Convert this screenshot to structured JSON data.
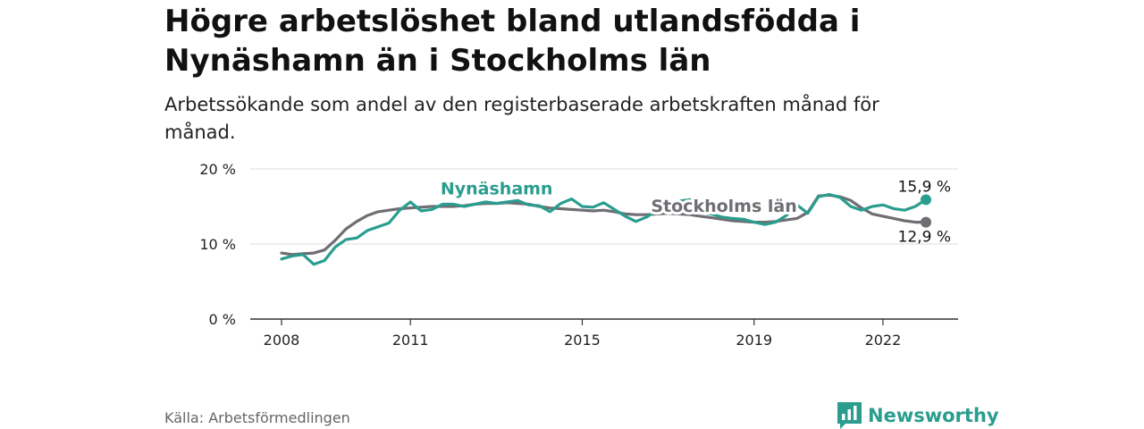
{
  "header": {
    "title": "Högre arbetslöshet bland utlandsfödda i Nynäshamn än i Stockholms län",
    "subtitle": "Arbetssökande som andel av den registerbaserade arbetskraften månad för månad."
  },
  "footer": {
    "source": "Källa: Arbetsförmedlingen",
    "brand": "Newsworthy"
  },
  "colors": {
    "nynashamn": "#2a9d8f",
    "stockholm": "#6e6e73",
    "grid": "#e3e3e3",
    "axis": "#333333",
    "brand": "#2a9d8f"
  },
  "chart_data": {
    "type": "line",
    "title": "Högre arbetslöshet bland utlandsfödda i Nynäshamn än i Stockholms län",
    "xlabel": "",
    "ylabel": "",
    "xlim": [
      2008,
      2023.5
    ],
    "ylim": [
      0,
      20
    ],
    "grid": true,
    "x_ticks": [
      {
        "value": 2008,
        "label": "2008"
      },
      {
        "value": 2011,
        "label": "2011"
      },
      {
        "value": 2015,
        "label": "2015"
      },
      {
        "value": 2019,
        "label": "2019"
      },
      {
        "value": 2022,
        "label": "2022"
      }
    ],
    "y_ticks": [
      {
        "value": 0,
        "label": "0 %"
      },
      {
        "value": 10,
        "label": "10 %"
      },
      {
        "value": 20,
        "label": "20 %"
      }
    ],
    "series": [
      {
        "name": "Nynäshamn",
        "color_key": "nynashamn",
        "end_label": "15,9 %",
        "label_at": [
          2011.7,
          16.6
        ],
        "x": [
          2008.0,
          2008.25,
          2008.5,
          2008.75,
          2009.0,
          2009.25,
          2009.5,
          2009.75,
          2010.0,
          2010.25,
          2010.5,
          2010.75,
          2011.0,
          2011.25,
          2011.5,
          2011.75,
          2012.0,
          2012.25,
          2012.5,
          2012.75,
          2013.0,
          2013.25,
          2013.5,
          2013.75,
          2014.0,
          2014.25,
          2014.5,
          2014.75,
          2015.0,
          2015.25,
          2015.5,
          2015.75,
          2016.0,
          2016.25,
          2016.5,
          2016.75,
          2017.0,
          2017.25,
          2017.5,
          2017.75,
          2018.0,
          2018.25,
          2018.5,
          2018.75,
          2019.0,
          2019.25,
          2019.5,
          2019.75,
          2020.0,
          2020.25,
          2020.5,
          2020.75,
          2021.0,
          2021.25,
          2021.5,
          2021.75,
          2022.0,
          2022.25,
          2022.5,
          2022.75,
          2023.0
        ],
        "values": [
          8.0,
          8.4,
          8.6,
          7.3,
          7.8,
          9.6,
          10.6,
          10.8,
          11.8,
          12.3,
          12.8,
          14.5,
          15.6,
          14.4,
          14.6,
          15.3,
          15.3,
          15.0,
          15.3,
          15.6,
          15.4,
          15.6,
          15.8,
          15.2,
          15.1,
          14.3,
          15.4,
          16.0,
          15.0,
          14.9,
          15.5,
          14.6,
          13.7,
          13.0,
          13.6,
          14.5,
          15.3,
          15.7,
          15.9,
          14.2,
          14.0,
          13.6,
          13.4,
          13.3,
          12.9,
          12.6,
          12.9,
          13.8,
          15.2,
          14.1,
          16.3,
          16.6,
          16.2,
          15.0,
          14.5,
          15.0,
          15.2,
          14.7,
          14.5,
          15.0,
          15.9
        ]
      },
      {
        "name": "Stockholms län",
        "color_key": "stockholm",
        "end_label": "12,9 %",
        "label_at": [
          2016.6,
          14.3
        ],
        "x": [
          2008.0,
          2008.25,
          2008.5,
          2008.75,
          2009.0,
          2009.25,
          2009.5,
          2009.75,
          2010.0,
          2010.25,
          2010.5,
          2010.75,
          2011.0,
          2011.25,
          2011.5,
          2011.75,
          2012.0,
          2012.25,
          2012.5,
          2012.75,
          2013.0,
          2013.25,
          2013.5,
          2013.75,
          2014.0,
          2014.25,
          2014.5,
          2014.75,
          2015.0,
          2015.25,
          2015.5,
          2015.75,
          2016.0,
          2016.25,
          2016.5,
          2016.75,
          2017.0,
          2017.25,
          2017.5,
          2017.75,
          2018.0,
          2018.25,
          2018.5,
          2018.75,
          2019.0,
          2019.25,
          2019.5,
          2019.75,
          2020.0,
          2020.25,
          2020.5,
          2020.75,
          2021.0,
          2021.25,
          2021.5,
          2021.75,
          2022.0,
          2022.25,
          2022.5,
          2022.75,
          2023.0
        ],
        "values": [
          8.8,
          8.6,
          8.7,
          8.8,
          9.2,
          10.5,
          12.0,
          13.0,
          13.8,
          14.3,
          14.5,
          14.7,
          14.8,
          14.9,
          15.0,
          15.0,
          15.0,
          15.1,
          15.3,
          15.4,
          15.4,
          15.5,
          15.4,
          15.3,
          15.0,
          14.8,
          14.7,
          14.6,
          14.5,
          14.4,
          14.5,
          14.3,
          14.0,
          13.9,
          13.9,
          14.0,
          14.1,
          14.0,
          13.9,
          13.7,
          13.5,
          13.3,
          13.1,
          13.0,
          12.9,
          12.9,
          13.0,
          13.2,
          13.4,
          14.2,
          16.4,
          16.5,
          16.3,
          15.8,
          14.8,
          14.0,
          13.7,
          13.4,
          13.1,
          12.9,
          12.9
        ]
      }
    ]
  }
}
